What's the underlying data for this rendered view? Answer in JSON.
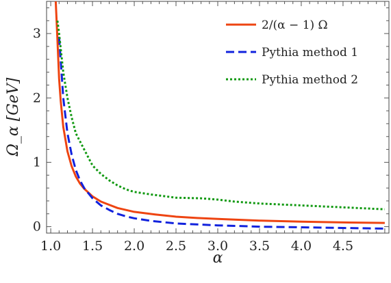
{
  "chart_data": {
    "type": "line",
    "xlabel": "α",
    "ylabel": "Ω_α  [GeV]",
    "xlim": [
      0.95,
      5.05
    ],
    "ylim": [
      -0.1,
      3.5
    ],
    "x_ticks": [
      1.0,
      1.5,
      2.0,
      2.5,
      3.0,
      3.5,
      4.0,
      4.5
    ],
    "x_tick_labels": [
      "1.0",
      "1.5",
      "2.0",
      "2.5",
      "3.0",
      "3.5",
      "4.0",
      "4.5"
    ],
    "y_ticks": [
      0,
      1,
      2,
      3
    ],
    "y_tick_labels": [
      "0",
      "1",
      "2",
      "3"
    ],
    "grid": false,
    "legend_position": "top-right",
    "series": [
      {
        "name": "2/(α − 1) Ω",
        "color": "#ee4411",
        "style": "solid",
        "x": [
          1.06,
          1.08,
          1.1,
          1.12,
          1.15,
          1.2,
          1.25,
          1.3,
          1.35,
          1.4,
          1.5,
          1.6,
          1.7,
          1.8,
          2.0,
          2.25,
          2.5,
          2.75,
          3.0,
          3.5,
          4.0,
          4.5,
          5.0
        ],
        "y": [
          3.5,
          2.9,
          2.3,
          1.95,
          1.55,
          1.17,
          0.94,
          0.78,
          0.67,
          0.59,
          0.47,
          0.39,
          0.34,
          0.29,
          0.23,
          0.19,
          0.155,
          0.135,
          0.12,
          0.094,
          0.078,
          0.066,
          0.058
        ]
      },
      {
        "name": "Pythia method 1",
        "color": "#1122dd",
        "style": "dashed",
        "x": [
          1.1,
          1.15,
          1.2,
          1.25,
          1.3,
          1.35,
          1.4,
          1.5,
          1.6,
          1.7,
          1.8,
          1.9,
          2.0,
          2.2,
          2.5,
          3.0,
          3.5,
          4.0,
          4.5,
          5.0
        ],
        "y": [
          2.95,
          2.0,
          1.45,
          1.12,
          0.88,
          0.72,
          0.6,
          0.44,
          0.33,
          0.26,
          0.2,
          0.16,
          0.13,
          0.09,
          0.05,
          0.02,
          0.0,
          -0.01,
          -0.02,
          -0.03
        ]
      },
      {
        "name": "Pythia method 2",
        "color": "#119911",
        "style": "dotted",
        "x": [
          1.08,
          1.1,
          1.15,
          1.2,
          1.25,
          1.3,
          1.4,
          1.5,
          1.6,
          1.7,
          1.8,
          1.9,
          2.0,
          2.2,
          2.5,
          2.8,
          3.0,
          3.2,
          3.5,
          4.0,
          4.5,
          5.0
        ],
        "y": [
          3.2,
          3.0,
          2.4,
          2.0,
          1.7,
          1.45,
          1.2,
          0.95,
          0.82,
          0.72,
          0.64,
          0.58,
          0.54,
          0.5,
          0.45,
          0.44,
          0.42,
          0.39,
          0.36,
          0.33,
          0.3,
          0.27
        ]
      }
    ]
  }
}
